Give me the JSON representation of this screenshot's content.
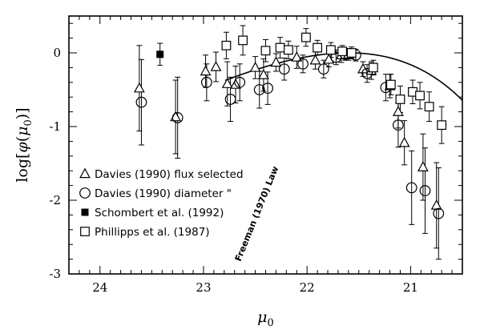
{
  "chart_data": {
    "type": "scatter",
    "xlabel": "μ0",
    "ylabel": "log[φ(μ0)]",
    "xlim": [
      24.3,
      20.5
    ],
    "ylim": [
      -3,
      0.5
    ],
    "x_reversed": true,
    "x_ticks": [
      24,
      23,
      22,
      21
    ],
    "y_ticks": [
      0,
      -1,
      -2,
      -3
    ],
    "x_minor_step": 0.1,
    "y_minor_step": 0.2,
    "legend_position": "bottom-left",
    "series": [
      {
        "name": "Davies (1990) flux selected",
        "marker": "open-triangle",
        "points": [
          {
            "x": 23.62,
            "y": -0.48,
            "err": 0.58
          },
          {
            "x": 23.27,
            "y": -0.87,
            "err": 0.5
          },
          {
            "x": 22.98,
            "y": -0.25,
            "err": 0.22
          },
          {
            "x": 22.88,
            "y": -0.19,
            "err": 0.2
          },
          {
            "x": 22.77,
            "y": -0.42,
            "err": 0.3
          },
          {
            "x": 22.69,
            "y": -0.43,
            "err": 0.25
          },
          {
            "x": 22.5,
            "y": -0.2,
            "err": 0.15
          },
          {
            "x": 22.42,
            "y": -0.3,
            "err": 0.22
          },
          {
            "x": 22.3,
            "y": -0.13,
            "err": 0.12
          },
          {
            "x": 22.1,
            "y": -0.06,
            "err": 0.15
          },
          {
            "x": 21.92,
            "y": -0.1,
            "err": 0.12
          },
          {
            "x": 21.79,
            "y": -0.09,
            "err": 0.1
          },
          {
            "x": 21.67,
            "y": -0.03,
            "err": 0.1
          },
          {
            "x": 21.6,
            "y": -0.02,
            "err": 0.08
          },
          {
            "x": 21.46,
            "y": -0.22,
            "err": 0.1
          },
          {
            "x": 21.38,
            "y": -0.24,
            "err": 0.12
          },
          {
            "x": 21.2,
            "y": -0.45,
            "err": 0.16
          },
          {
            "x": 21.12,
            "y": -0.8,
            "err": 0.22
          },
          {
            "x": 21.06,
            "y": -1.22,
            "err": 0.3
          },
          {
            "x": 20.88,
            "y": -1.55,
            "err": 0.45
          },
          {
            "x": 20.75,
            "y": -2.07,
            "err": 0.58
          }
        ]
      },
      {
        "name": "Davies (1990) diameter \"",
        "marker": "open-circle",
        "points": [
          {
            "x": 23.6,
            "y": -0.67,
            "err": 0.58
          },
          {
            "x": 23.25,
            "y": -0.88,
            "err": 0.55
          },
          {
            "x": 22.97,
            "y": -0.4,
            "err": 0.25
          },
          {
            "x": 22.74,
            "y": -0.63,
            "err": 0.3
          },
          {
            "x": 22.65,
            "y": -0.4,
            "err": 0.25
          },
          {
            "x": 22.46,
            "y": -0.5,
            "err": 0.25
          },
          {
            "x": 22.38,
            "y": -0.48,
            "err": 0.22
          },
          {
            "x": 22.22,
            "y": -0.22,
            "err": 0.15
          },
          {
            "x": 22.04,
            "y": -0.15,
            "err": 0.12
          },
          {
            "x": 21.84,
            "y": -0.22,
            "err": 0.12
          },
          {
            "x": 21.72,
            "y": -0.06,
            "err": 0.1
          },
          {
            "x": 21.63,
            "y": -0.02,
            "err": 0.08
          },
          {
            "x": 21.53,
            "y": -0.03,
            "err": 0.08
          },
          {
            "x": 21.42,
            "y": -0.28,
            "err": 0.12
          },
          {
            "x": 21.24,
            "y": -0.47,
            "err": 0.18
          },
          {
            "x": 21.12,
            "y": -0.98,
            "err": 0.3
          },
          {
            "x": 20.99,
            "y": -1.83,
            "err": 0.5
          },
          {
            "x": 20.86,
            "y": -1.87,
            "err": 0.58
          },
          {
            "x": 20.73,
            "y": -2.18,
            "err": 0.62
          }
        ]
      },
      {
        "name": "Schombert et al. (1992)",
        "marker": "filled-square",
        "points": [
          {
            "x": 23.42,
            "y": -0.02,
            "err": 0.15
          }
        ]
      },
      {
        "name": "Phillipps et al. (1987)",
        "marker": "open-square",
        "points": [
          {
            "x": 22.78,
            "y": 0.1,
            "err": 0.18
          },
          {
            "x": 22.62,
            "y": 0.17,
            "err": 0.2
          },
          {
            "x": 22.4,
            "y": 0.03,
            "err": 0.15
          },
          {
            "x": 22.26,
            "y": 0.07,
            "err": 0.14
          },
          {
            "x": 22.18,
            "y": 0.04,
            "err": 0.12
          },
          {
            "x": 22.01,
            "y": 0.21,
            "err": 0.12
          },
          {
            "x": 21.9,
            "y": 0.07,
            "err": 0.1
          },
          {
            "x": 21.77,
            "y": 0.04,
            "err": 0.1
          },
          {
            "x": 21.66,
            "y": 0.02,
            "err": 0.08
          },
          {
            "x": 21.57,
            "y": 0.0,
            "err": 0.08
          },
          {
            "x": 21.36,
            "y": -0.2,
            "err": 0.1
          },
          {
            "x": 21.19,
            "y": -0.43,
            "err": 0.14
          },
          {
            "x": 21.1,
            "y": -0.63,
            "err": 0.18
          },
          {
            "x": 20.98,
            "y": -0.53,
            "err": 0.16
          },
          {
            "x": 20.91,
            "y": -0.58,
            "err": 0.18
          },
          {
            "x": 20.82,
            "y": -0.73,
            "err": 0.2
          },
          {
            "x": 20.7,
            "y": -0.98,
            "err": 0.25
          }
        ]
      }
    ],
    "curve": {
      "label": "Freeman (1970) Law",
      "peak_x": 21.6,
      "peak_y": 0,
      "shape": "freeman-exponential",
      "alpha_per_mag": 0.921
    }
  }
}
